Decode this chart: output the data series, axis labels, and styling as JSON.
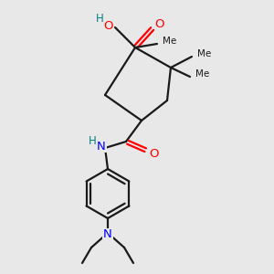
{
  "bg_color": "#e8e8e8",
  "bond_color": "#1a1a1a",
  "oxygen_color": "#ff0000",
  "nitrogen_blue": "#0000ff",
  "nitrogen_teal": "#008080",
  "line_width": 1.6,
  "figsize": [
    3.0,
    3.0
  ],
  "dpi": 100,
  "xlim": [
    0,
    300
  ],
  "ylim": [
    0,
    300
  ]
}
